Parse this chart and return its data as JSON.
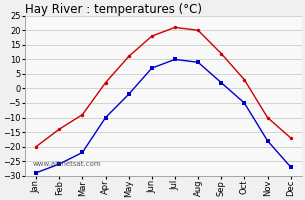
{
  "title": "Hay River : temperatures (°C)",
  "months": [
    "Jan",
    "Feb",
    "Mar",
    "Apr",
    "May",
    "Jun",
    "Jul",
    "Aug",
    "Sep",
    "Oct",
    "Nov",
    "Dec"
  ],
  "max_temps": [
    -20,
    -14,
    -9,
    2,
    11,
    18,
    21,
    20,
    12,
    3,
    -10,
    -17
  ],
  "min_temps": [
    -29,
    -26,
    -22,
    -10,
    -2,
    7,
    10,
    9,
    2,
    -5,
    -18,
    -27
  ],
  "line_color_max": "#cc0000",
  "line_color_min": "#0000cc",
  "background_color": "#f0f0f0",
  "plot_bg_color": "#f8f8f8",
  "grid_color": "#cccccc",
  "ylim": [
    -30,
    25
  ],
  "yticks": [
    -30,
    -25,
    -20,
    -15,
    -10,
    -5,
    0,
    5,
    10,
    15,
    20,
    25
  ],
  "title_fontsize": 8.5,
  "tick_fontsize": 6,
  "watermark": "www.allmetsat.com"
}
